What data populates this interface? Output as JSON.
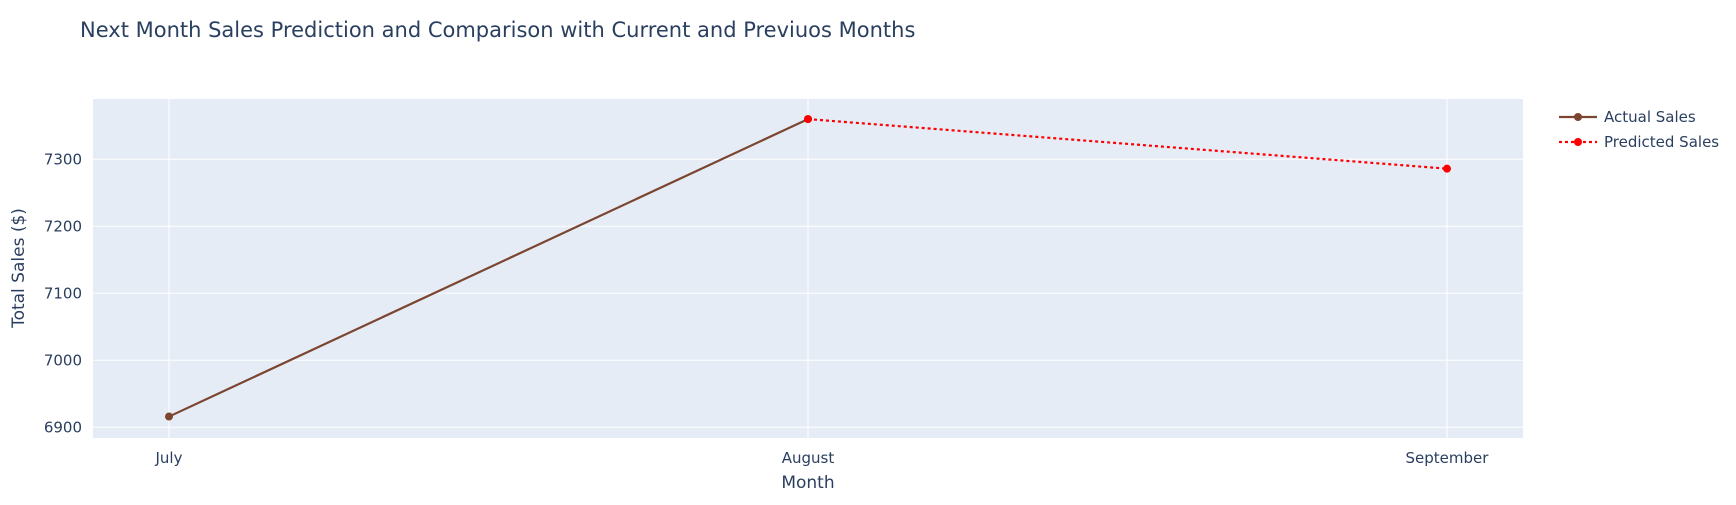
{
  "chart_data": {
    "type": "line",
    "title": "Next Month Sales Prediction and Comparison with Current and Previuos Months",
    "xlabel": "Month",
    "ylabel": "Total Sales ($)",
    "categories": [
      "July",
      "August",
      "September"
    ],
    "y_ticks": [
      6900,
      7000,
      7100,
      7200,
      7300
    ],
    "ylim": [
      6884,
      7390
    ],
    "grid": true,
    "legend_position": "top-right",
    "series": [
      {
        "name": "Actual Sales",
        "x": [
          "July",
          "August"
        ],
        "values": [
          6916,
          7360
        ],
        "color": "#7b4530",
        "line_style": "solid"
      },
      {
        "name": "Predicted Sales",
        "x": [
          "August",
          "September"
        ],
        "values": [
          7360,
          7286
        ],
        "color": "#ff0000",
        "line_style": "dotted"
      }
    ],
    "colors": {
      "plot_background": "#e5ecf6",
      "grid": "#ffffff",
      "text": "#2a3f5f"
    }
  }
}
